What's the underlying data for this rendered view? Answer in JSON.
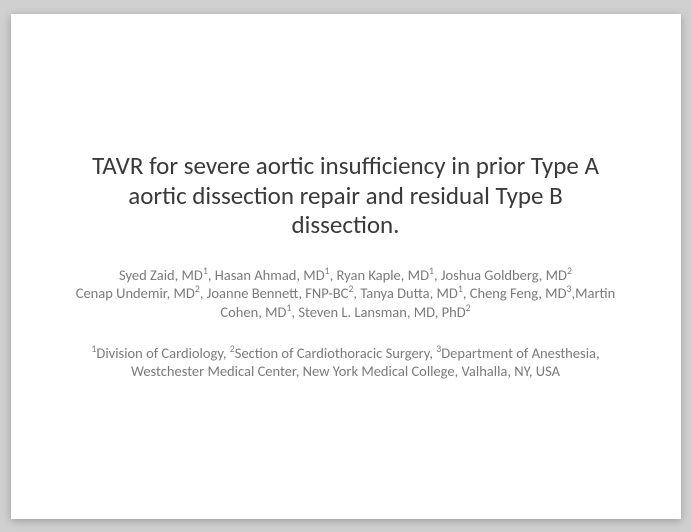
{
  "slide": {
    "background_color": "#ffffff",
    "viewport_background": "#d0d0d0",
    "title": {
      "line1": "TAVR for severe aortic insufficiency in prior Type A",
      "line2": "aortic dissection repair and residual Type B",
      "line3": "dissection.",
      "fontsize": 25,
      "color": "#3a3a3a",
      "weight": 400
    },
    "authors": {
      "fontsize": 14.5,
      "color": "#7a7a7a",
      "items": [
        {
          "name": "Syed Zaid, MD",
          "sup": "1",
          "trail": ", "
        },
        {
          "name": "Hasan Ahmad, MD",
          "sup": "1",
          "trail": ", "
        },
        {
          "name": "Ryan Kaple, MD",
          "sup": "1",
          "trail": ", "
        },
        {
          "name": "Joshua Goldberg, MD",
          "sup": "2",
          "trail": ""
        },
        {
          "name": "Cenap Undemir, MD",
          "sup": "2",
          "trail": ", "
        },
        {
          "name": "Joanne Bennett, FNP-BC",
          "sup": "2",
          "trail": ", "
        },
        {
          "name": "Tanya Dutta, MD",
          "sup": "1",
          "trail": ", "
        },
        {
          "name": "Cheng Feng, MD",
          "sup": "3",
          "trail": ","
        },
        {
          "name": "Martin Cohen, MD",
          "sup": "1",
          "trail": ", "
        },
        {
          "name": "Steven L. Lansman, MD, PhD",
          "sup": "2",
          "trail": ""
        }
      ]
    },
    "affiliations": {
      "fontsize": 14.5,
      "color": "#7a7a7a",
      "items": [
        {
          "sup": "1",
          "text": "Division of Cardiology",
          "trail": ", "
        },
        {
          "sup": "2",
          "text": "Section of Cardiothoracic Surgery",
          "trail": ", "
        },
        {
          "sup": "3",
          "text": "Department of Anesthesia, Westchester Medical Center, New York Medical College, Valhalla, NY, USA",
          "trail": ""
        }
      ]
    }
  }
}
